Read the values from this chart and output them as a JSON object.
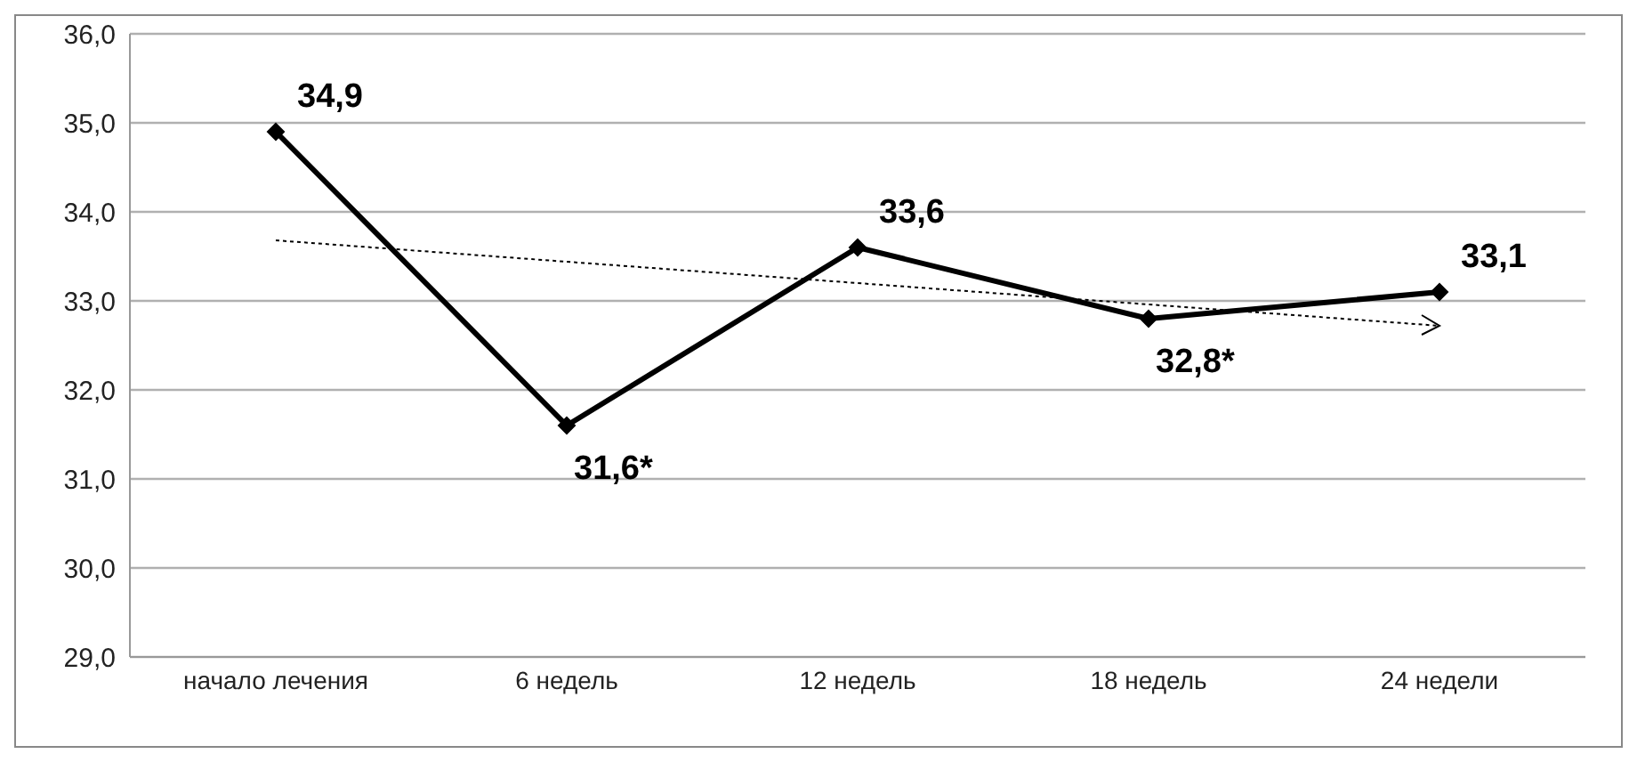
{
  "chart_data": {
    "type": "line",
    "categories": [
      "начало лечения",
      "6 недель",
      "12 недель",
      "18 недель",
      "24 недели"
    ],
    "series": [
      {
        "color": "#000000",
        "values": [
          34.9,
          31.6,
          33.6,
          32.8,
          33.1
        ],
        "value_labels": [
          "34,9",
          "31,6*",
          "33,6",
          "32,8*",
          "33,1"
        ],
        "marker": "diamond",
        "line_style": "solid"
      },
      {
        "type": "line",
        "color": "#000000",
        "values": [
          33.68,
          33.44,
          33.2,
          32.96,
          32.72
        ],
        "marker": "none",
        "line_style": "dotted"
      }
    ],
    "ylim": [
      29,
      36
    ],
    "yticks": [
      {
        "value": 29,
        "label": "29,0"
      },
      {
        "value": 30,
        "label": "30,0"
      },
      {
        "value": 31,
        "label": "31,0"
      },
      {
        "value": 32,
        "label": "32,0"
      },
      {
        "value": 33,
        "label": "33,0"
      },
      {
        "value": 34,
        "label": "34,0"
      },
      {
        "value": 35,
        "label": "35,0"
      },
      {
        "value": 36,
        "label": "36,0"
      }
    ],
    "grid": "y"
  }
}
